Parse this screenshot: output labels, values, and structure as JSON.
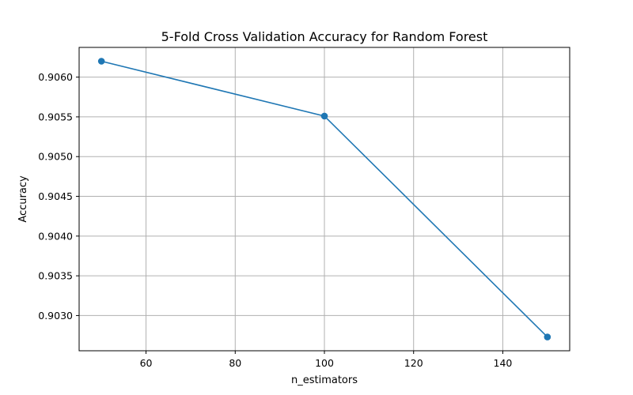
{
  "chart_data": {
    "type": "line",
    "title": "5-Fold Cross Validation Accuracy for Random Forest",
    "xlabel": "n_estimators",
    "ylabel": "Accuracy",
    "x": [
      50,
      100,
      150
    ],
    "series": [
      {
        "values": [
          0.9062,
          0.90551,
          0.90273
        ],
        "color": "#1f77b4",
        "marker": "circle"
      }
    ],
    "xlim": [
      45.0,
      155.0
    ],
    "ylim": [
      0.902557,
      0.906374
    ],
    "xticks": [
      60,
      80,
      100,
      120,
      140
    ],
    "xtick_labels": [
      "60",
      "80",
      "100",
      "120",
      "140"
    ],
    "yticks": [
      0.903,
      0.9035,
      0.904,
      0.9045,
      0.905,
      0.9055,
      0.906
    ],
    "ytick_labels": [
      "0.9030",
      "0.9035",
      "0.9040",
      "0.9045",
      "0.9050",
      "0.9055",
      "0.9060"
    ],
    "grid": true,
    "legend": "none"
  }
}
